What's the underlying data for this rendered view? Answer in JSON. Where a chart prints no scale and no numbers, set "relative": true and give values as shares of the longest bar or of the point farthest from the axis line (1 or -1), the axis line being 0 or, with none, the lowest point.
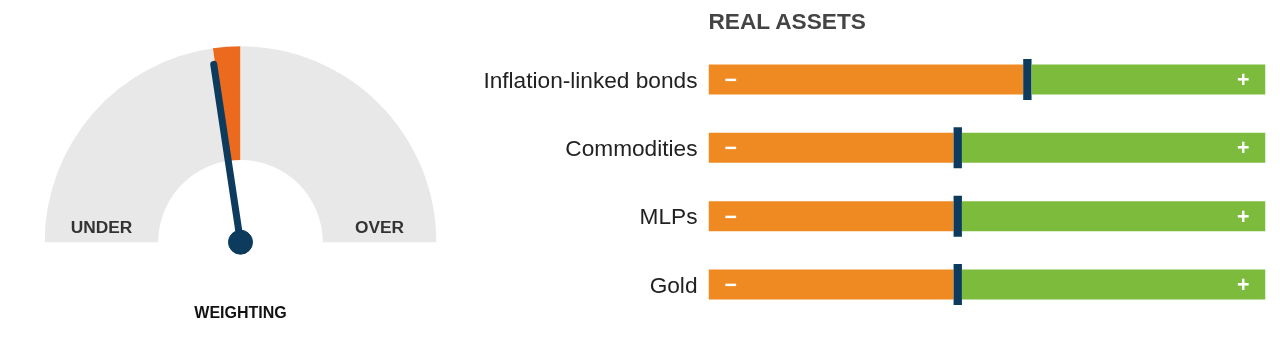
{
  "chart_data": [
    {
      "type": "donut",
      "xlabel": "WEIGHTING",
      "categories": [
        "UNDER",
        null,
        "OVER"
      ],
      "values": [
        45.5,
        4.5,
        50
      ],
      "colors": [
        "#e8e8e8",
        "#ec6a1e",
        "#e8e8e8"
      ],
      "needle": "UNDER"
    },
    {
      "type": "bar",
      "title": "REAL ASSETS",
      "orientation": "horizontal",
      "stacked": true,
      "relative": true,
      "categories": [
        "Inflation-linked bonds",
        "Commodities",
        "MLPs",
        "Gold"
      ],
      "annotations": [
        "−",
        "+"
      ],
      "series": [
        {
          "color": "#ef8a22",
          "values": [
            0.565,
            0.44,
            0.44,
            0.44
          ]
        },
        {
          "color": "#0d3b5e",
          "values": [
            0.015,
            0.015,
            0.015,
            0.015
          ]
        },
        {
          "color": "#7dbb3c",
          "values": [
            0.42,
            0.545,
            0.545,
            0.545
          ]
        }
      ]
    }
  ]
}
